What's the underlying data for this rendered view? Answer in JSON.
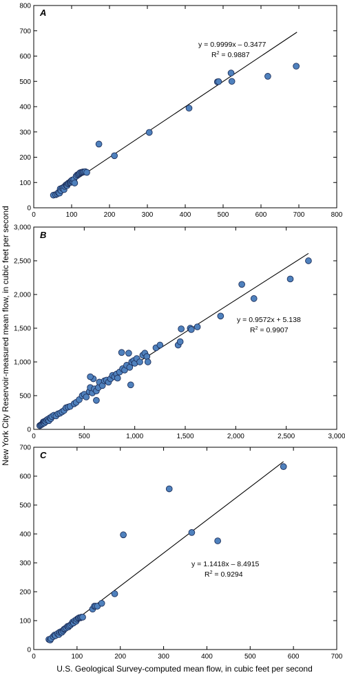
{
  "axis_titles": {
    "y": "New York City Reservoir-measured mean flow, in cubic feet per second",
    "x": "U.S. Geological Survey-computed mean flow, in cubic feet per second"
  },
  "chart_data": [
    {
      "type": "scatter",
      "panel": "A",
      "title": "",
      "xlim": [
        0,
        800
      ],
      "ylim": [
        0,
        800
      ],
      "xticks": [
        0,
        100,
        200,
        300,
        400,
        500,
        600,
        700,
        800
      ],
      "yticks": [
        0,
        100,
        200,
        300,
        400,
        500,
        600,
        700,
        800
      ],
      "xtick_labels": [
        "0",
        "100",
        "200",
        "300",
        "400",
        "500",
        "600",
        "700",
        "800"
      ],
      "ytick_labels": [
        "0",
        "100",
        "200",
        "300",
        "400",
        "500",
        "600",
        "700",
        "800"
      ],
      "grid": false,
      "fit_line": {
        "slope": 0.9999,
        "intercept": -0.3477,
        "x_range": [
          48,
          695
        ]
      },
      "equation": "y = 0.9999x – 0.3477",
      "r2_prefix": "R",
      "r2_suffix": " = 0.9887",
      "points": [
        [
          52,
          50
        ],
        [
          58,
          52
        ],
        [
          62,
          55
        ],
        [
          65,
          60
        ],
        [
          68,
          58
        ],
        [
          70,
          75
        ],
        [
          72,
          68
        ],
        [
          75,
          78
        ],
        [
          78,
          80
        ],
        [
          80,
          72
        ],
        [
          82,
          85
        ],
        [
          85,
          90
        ],
        [
          87,
          92
        ],
        [
          88,
          88
        ],
        [
          90,
          95
        ],
        [
          92,
          98
        ],
        [
          95,
          100
        ],
        [
          97,
          100
        ],
        [
          98,
          105
        ],
        [
          100,
          108
        ],
        [
          102,
          110
        ],
        [
          104,
          102
        ],
        [
          106,
          112
        ],
        [
          108,
          98
        ],
        [
          112,
          125
        ],
        [
          115,
          130
        ],
        [
          118,
          132
        ],
        [
          120,
          135
        ],
        [
          122,
          138
        ],
        [
          125,
          140
        ],
        [
          128,
          140
        ],
        [
          130,
          142
        ],
        [
          133,
          142
        ],
        [
          136,
          143
        ],
        [
          140,
          140
        ],
        [
          172,
          252
        ],
        [
          213,
          206
        ],
        [
          305,
          298
        ],
        [
          410,
          394
        ],
        [
          485,
          498
        ],
        [
          488,
          499
        ],
        [
          521,
          533
        ],
        [
          523,
          500
        ],
        [
          618,
          520
        ],
        [
          693,
          560
        ]
      ]
    },
    {
      "type": "scatter",
      "panel": "B",
      "title": "",
      "xlim": [
        0,
        3000
      ],
      "ylim": [
        0,
        3000
      ],
      "xticks": [
        0,
        500,
        1000,
        1500,
        2000,
        2500,
        3000
      ],
      "yticks": [
        0,
        500,
        1000,
        1500,
        2000,
        2500,
        3000
      ],
      "xtick_labels": [
        "0",
        "500",
        "1,000",
        "1,500",
        "2,000",
        "2,500",
        "3,000"
      ],
      "ytick_labels": [
        "0",
        "500",
        "1,000",
        "1,500",
        "2,000",
        "2,500",
        "3,000"
      ],
      "grid": false,
      "fit_line": {
        "slope": 0.9572,
        "intercept": 5.138,
        "x_range": [
          50,
          2720
        ]
      },
      "equation": "y = 0.9572x + 5.138",
      "r2_prefix": "R",
      "r2_suffix": " = 0.9907",
      "points": [
        [
          60,
          55
        ],
        [
          70,
          65
        ],
        [
          80,
          75
        ],
        [
          90,
          85
        ],
        [
          95,
          110
        ],
        [
          100,
          100
        ],
        [
          105,
          95
        ],
        [
          110,
          120
        ],
        [
          120,
          115
        ],
        [
          130,
          140
        ],
        [
          140,
          150
        ],
        [
          150,
          130
        ],
        [
          160,
          170
        ],
        [
          170,
          160
        ],
        [
          180,
          190
        ],
        [
          200,
          210
        ],
        [
          220,
          200
        ],
        [
          240,
          230
        ],
        [
          260,
          240
        ],
        [
          280,
          260
        ],
        [
          300,
          280
        ],
        [
          320,
          320
        ],
        [
          340,
          330
        ],
        [
          360,
          340
        ],
        [
          400,
          380
        ],
        [
          420,
          400
        ],
        [
          450,
          440
        ],
        [
          480,
          500
        ],
        [
          500,
          520
        ],
        [
          520,
          480
        ],
        [
          550,
          560
        ],
        [
          560,
          620
        ],
        [
          580,
          540
        ],
        [
          600,
          600
        ],
        [
          620,
          570
        ],
        [
          640,
          620
        ],
        [
          650,
          700
        ],
        [
          680,
          650
        ],
        [
          700,
          720
        ],
        [
          720,
          730
        ],
        [
          740,
          700
        ],
        [
          760,
          750
        ],
        [
          780,
          800
        ],
        [
          800,
          780
        ],
        [
          820,
          820
        ],
        [
          850,
          850
        ],
        [
          870,
          1140
        ],
        [
          880,
          900
        ],
        [
          900,
          880
        ],
        [
          920,
          950
        ],
        [
          950,
          920
        ],
        [
          960,
          660
        ],
        [
          970,
          1000
        ],
        [
          990,
          1020
        ],
        [
          1000,
          980
        ],
        [
          1020,
          1050
        ],
        [
          1050,
          1000
        ],
        [
          1080,
          1100
        ],
        [
          1100,
          1130
        ],
        [
          1120,
          1080
        ],
        [
          1130,
          1000
        ],
        [
          1210,
          1210
        ],
        [
          1250,
          1250
        ],
        [
          1430,
          1250
        ],
        [
          1450,
          1300
        ],
        [
          1460,
          1490
        ],
        [
          1550,
          1500
        ],
        [
          1560,
          1480
        ],
        [
          1620,
          1520
        ],
        [
          1850,
          1680
        ],
        [
          2060,
          2150
        ],
        [
          2180,
          1940
        ],
        [
          2540,
          2230
        ],
        [
          2720,
          2500
        ],
        [
          590,
          750
        ],
        [
          620,
          430
        ],
        [
          560,
          780
        ],
        [
          830,
          760
        ],
        [
          940,
          1130
        ]
      ]
    },
    {
      "type": "scatter",
      "panel": "C",
      "title": "",
      "xlim": [
        0,
        700
      ],
      "ylim": [
        0,
        700
      ],
      "xticks": [
        0,
        100,
        200,
        300,
        400,
        500,
        600,
        700
      ],
      "yticks": [
        0,
        100,
        200,
        300,
        400,
        500,
        600,
        700
      ],
      "xtick_labels": [
        "0",
        "100",
        "200",
        "300",
        "400",
        "500",
        "600",
        "700"
      ],
      "ytick_labels": [
        "0",
        "100",
        "200",
        "300",
        "400",
        "500",
        "600",
        "700"
      ],
      "grid": false,
      "fit_line": {
        "slope": 1.1418,
        "intercept": -8.4915,
        "x_range": [
          33,
          577
        ]
      },
      "equation": "y = 1.1418x – 8.4915",
      "r2_prefix": "R",
      "r2_suffix": " = 0.9294",
      "points": [
        [
          35,
          35
        ],
        [
          38,
          33
        ],
        [
          40,
          38
        ],
        [
          45,
          45
        ],
        [
          48,
          50
        ],
        [
          50,
          48
        ],
        [
          55,
          55
        ],
        [
          58,
          52
        ],
        [
          60,
          60
        ],
        [
          63,
          62
        ],
        [
          65,
          60
        ],
        [
          68,
          65
        ],
        [
          70,
          70
        ],
        [
          72,
          72
        ],
        [
          75,
          75
        ],
        [
          78,
          80
        ],
        [
          80,
          78
        ],
        [
          82,
          82
        ],
        [
          85,
          85
        ],
        [
          88,
          90
        ],
        [
          90,
          95
        ],
        [
          92,
          92
        ],
        [
          95,
          100
        ],
        [
          98,
          98
        ],
        [
          100,
          105
        ],
        [
          103,
          108
        ],
        [
          105,
          110
        ],
        [
          108,
          110
        ],
        [
          110,
          112
        ],
        [
          113,
          112
        ],
        [
          136,
          140
        ],
        [
          140,
          150
        ],
        [
          143,
          150
        ],
        [
          147,
          150
        ],
        [
          157,
          160
        ],
        [
          187,
          193
        ],
        [
          207,
          397
        ],
        [
          313,
          556
        ],
        [
          365,
          405
        ],
        [
          425,
          376
        ],
        [
          577,
          633
        ]
      ]
    }
  ]
}
